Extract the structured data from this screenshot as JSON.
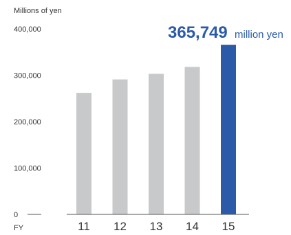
{
  "chart_data": {
    "type": "bar",
    "ylabel": "Millions of yen",
    "xlabel": "FY",
    "categories": [
      "11",
      "12",
      "13",
      "14",
      "15"
    ],
    "values": [
      262000,
      291000,
      303000,
      318000,
      365749
    ],
    "ylim": [
      0,
      400000
    ],
    "yticks": [
      {
        "value": 0,
        "label": "0"
      },
      {
        "value": 100000,
        "label": "100,000"
      },
      {
        "value": 200000,
        "label": "200,000"
      },
      {
        "value": 300000,
        "label": "300,000"
      },
      {
        "value": 400000,
        "label": "400,000"
      }
    ],
    "highlight": {
      "index": 4,
      "value_label": "365,749",
      "unit_label": "million yen"
    },
    "colors": {
      "bar": "#c8c9ca",
      "highlight_bar": "#2b5ba8",
      "axis": "#555555"
    },
    "grid": false
  }
}
